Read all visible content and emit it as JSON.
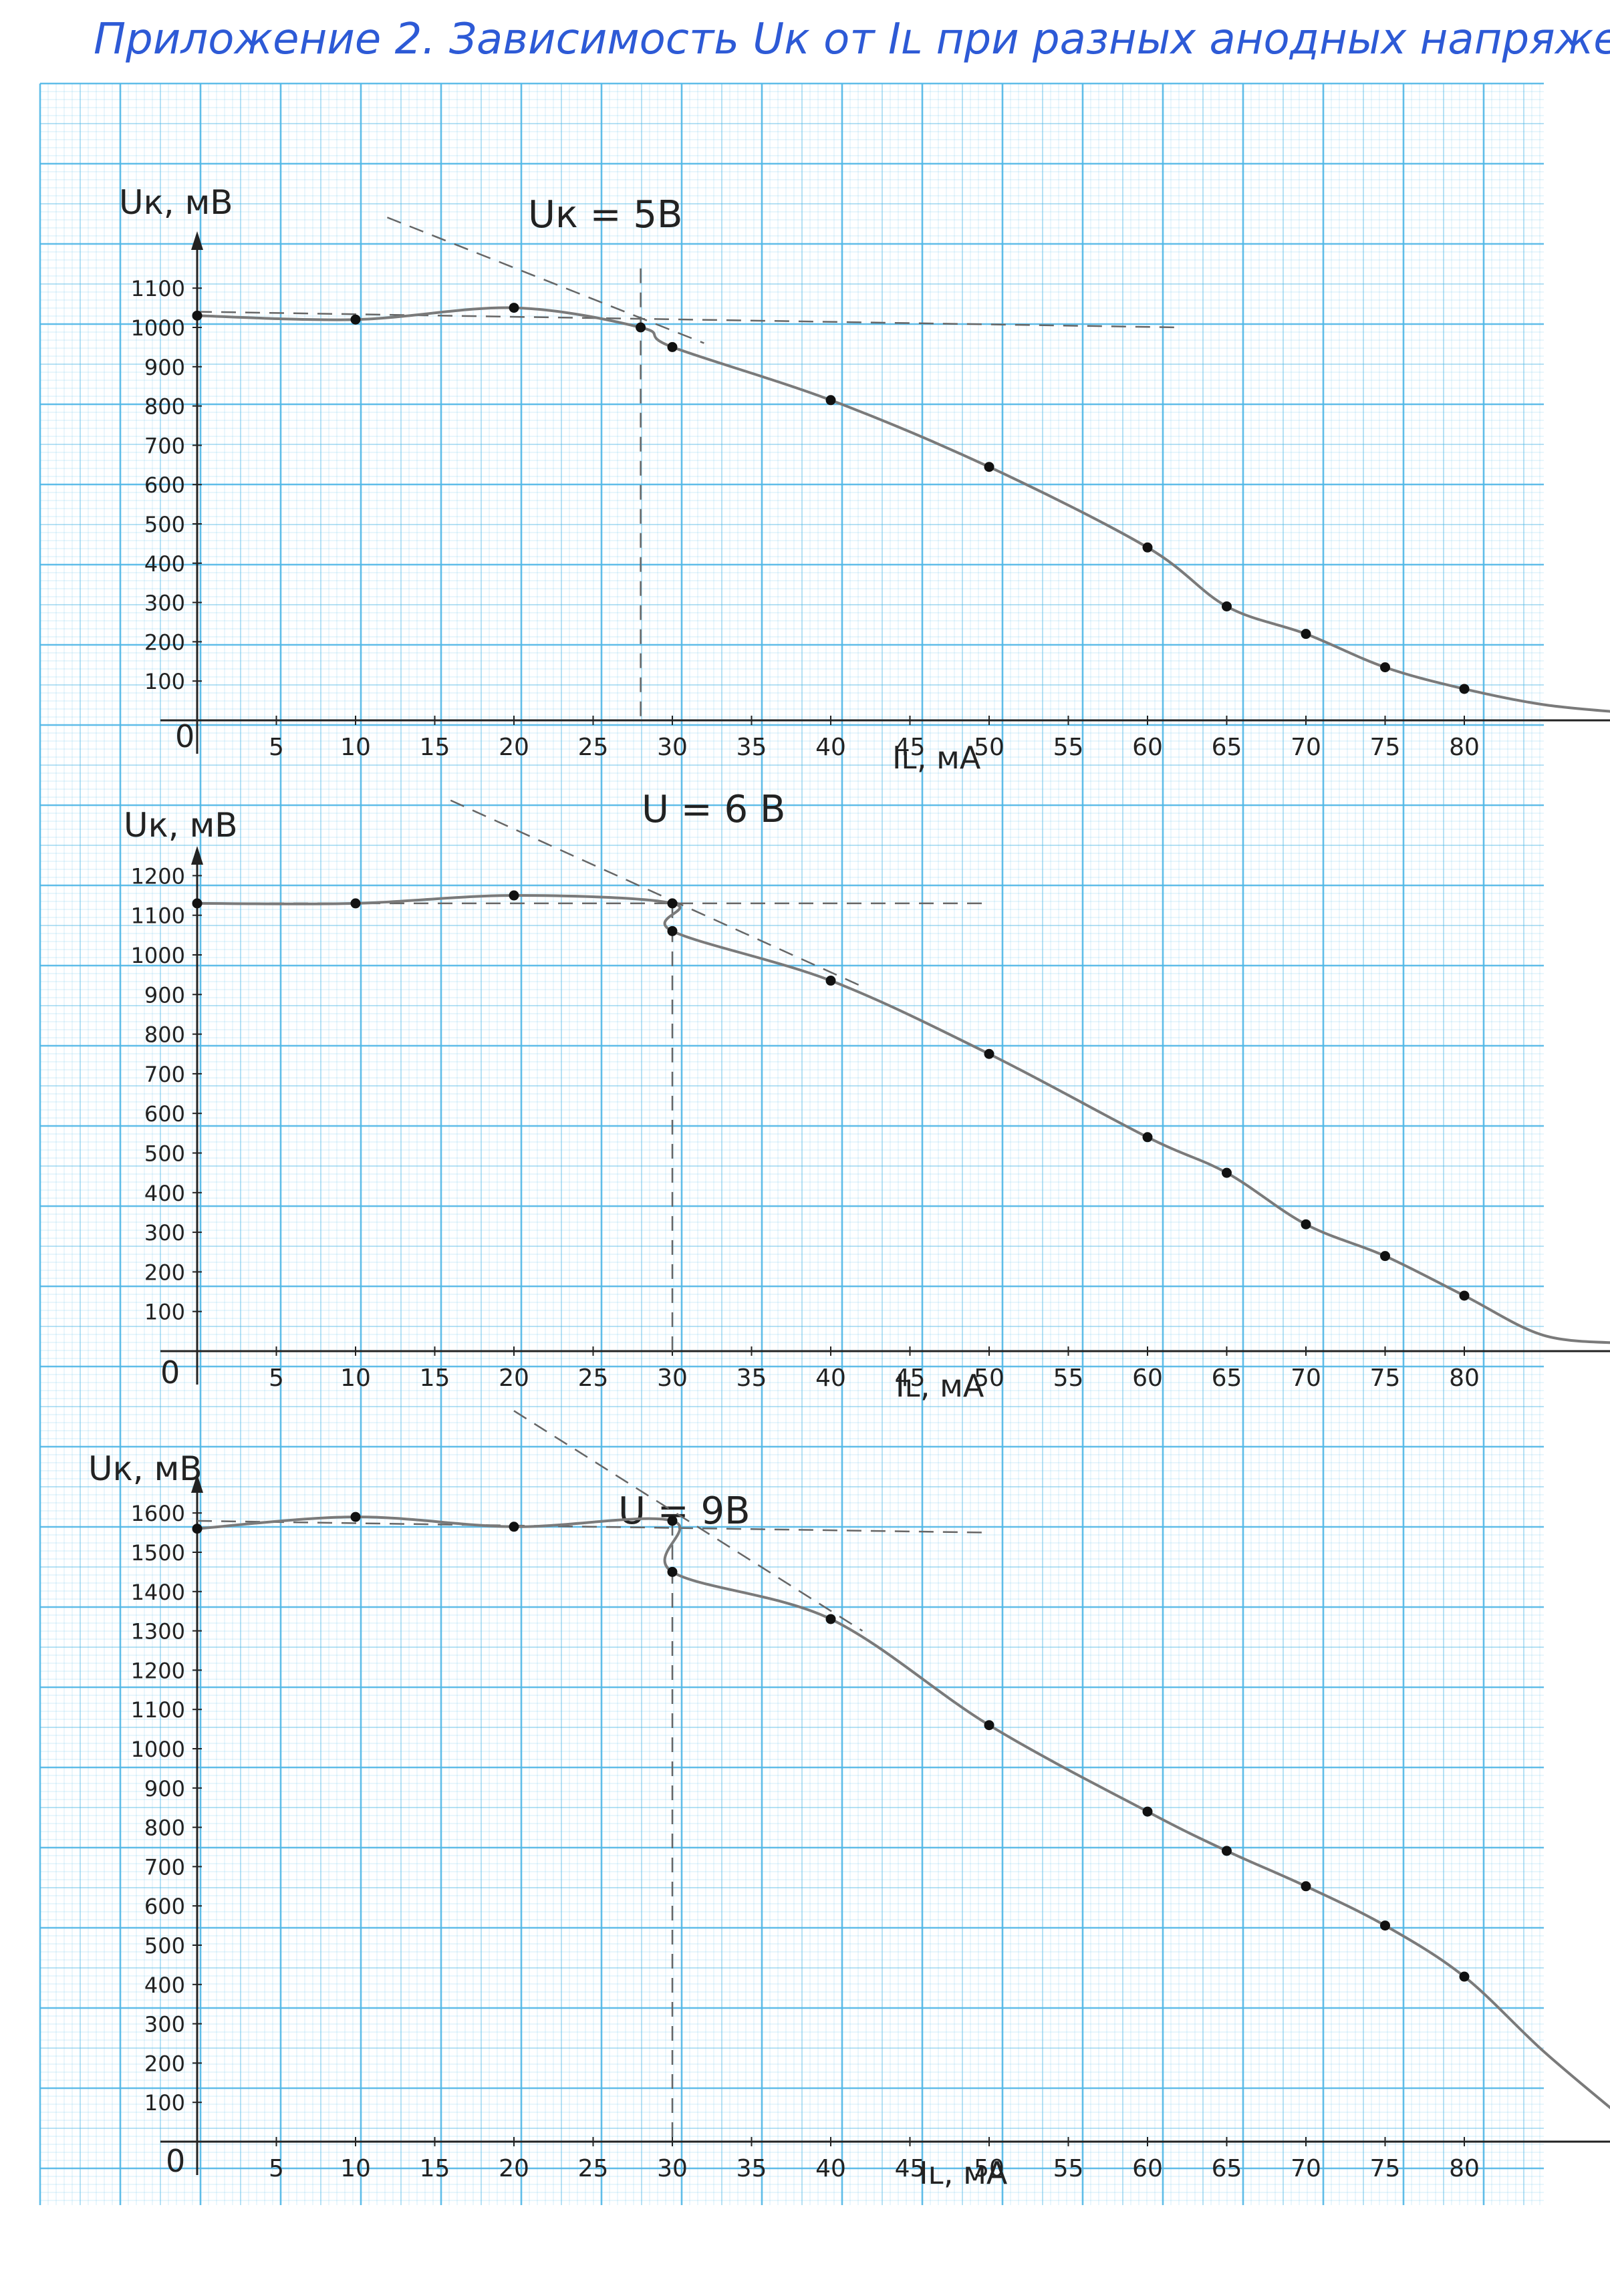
{
  "page": {
    "title": "Приложение 2. Зависимость Uк от Iʟ при разных анодных напряжениях.",
    "paper_color": "#ffffff",
    "grid_color": "#4fb6e6",
    "ink_color": "#222222",
    "title_color": "#2d5ad6",
    "curve_color": "#7a7a7a"
  },
  "chart_data": [
    {
      "type": "line",
      "title": "Uк = 5В",
      "xlabel": "Iʟ, мА",
      "ylabel": "Uк, мВ",
      "xlim": [
        0,
        90
      ],
      "ylim": [
        0,
        1200
      ],
      "x_ticks": [
        "5",
        "10",
        "15",
        "20",
        "25",
        "30",
        "35",
        "40",
        "45",
        "50",
        "55",
        "60",
        "65",
        "70",
        "75",
        "80"
      ],
      "y_ticks": [
        "100",
        "200",
        "300",
        "400",
        "500",
        "600",
        "700",
        "800",
        "900",
        "1000",
        "1100"
      ],
      "origin_label": "0",
      "points": [
        {
          "x": 0,
          "y": 1030
        },
        {
          "x": 10,
          "y": 1020
        },
        {
          "x": 20,
          "y": 1050
        },
        {
          "x": 28,
          "y": 1000
        },
        {
          "x": 30,
          "y": 950
        },
        {
          "x": 40,
          "y": 815
        },
        {
          "x": 50,
          "y": 645
        },
        {
          "x": 60,
          "y": 440
        },
        {
          "x": 65,
          "y": 290
        },
        {
          "x": 70,
          "y": 220
        },
        {
          "x": 75,
          "y": 135
        },
        {
          "x": 80,
          "y": 80
        }
      ],
      "curve_tail": [
        {
          "x": 85,
          "y": 40
        },
        {
          "x": 90,
          "y": 20
        }
      ],
      "flat_line": {
        "x": [
          0,
          62
        ],
        "y": [
          1040,
          1000
        ]
      },
      "tangent_line": {
        "x": [
          12,
          32
        ],
        "y": [
          1280,
          960
        ]
      },
      "drop_line": {
        "x": 28,
        "y_top": 1150
      }
    },
    {
      "type": "line",
      "title": "U = 6 В",
      "xlabel": "Iʟ, мА",
      "ylabel": "Uк, мВ",
      "xlim": [
        0,
        90
      ],
      "ylim": [
        0,
        1200
      ],
      "x_ticks": [
        "5",
        "10",
        "15",
        "20",
        "25",
        "30",
        "35",
        "40",
        "45",
        "50",
        "55",
        "60",
        "65",
        "70",
        "75",
        "80"
      ],
      "y_ticks": [
        "100",
        "200",
        "300",
        "400",
        "500",
        "600",
        "700",
        "800",
        "900",
        "1000",
        "1100",
        "1200"
      ],
      "origin_label": "0",
      "points": [
        {
          "x": 0,
          "y": 1130
        },
        {
          "x": 10,
          "y": 1130
        },
        {
          "x": 20,
          "y": 1150
        },
        {
          "x": 30,
          "y": 1130
        },
        {
          "x": 30,
          "y": 1060
        },
        {
          "x": 40,
          "y": 935
        },
        {
          "x": 50,
          "y": 750
        },
        {
          "x": 60,
          "y": 540
        },
        {
          "x": 65,
          "y": 450
        },
        {
          "x": 70,
          "y": 320
        },
        {
          "x": 75,
          "y": 240
        },
        {
          "x": 80,
          "y": 140
        }
      ],
      "curve_tail": [
        {
          "x": 85,
          "y": 40
        },
        {
          "x": 90,
          "y": 20
        }
      ],
      "flat_line": {
        "x": [
          0,
          50
        ],
        "y": [
          1130,
          1130
        ]
      },
      "tangent_line": {
        "x": [
          16,
          42
        ],
        "y": [
          1390,
          920
        ]
      },
      "drop_line": {
        "x": 30,
        "y_top": 1130
      }
    },
    {
      "type": "line",
      "title": "U = 9В",
      "xlabel": "Iʟ, мА",
      "ylabel": "Uк, мВ",
      "xlim": [
        0,
        90
      ],
      "ylim": [
        0,
        1650
      ],
      "x_ticks": [
        "5",
        "10",
        "15",
        "20",
        "25",
        "30",
        "35",
        "40",
        "45",
        "50",
        "55",
        "60",
        "65",
        "70",
        "75",
        "80"
      ],
      "y_ticks": [
        "100",
        "200",
        "300",
        "400",
        "500",
        "600",
        "700",
        "800",
        "900",
        "1000",
        "1100",
        "1200",
        "1300",
        "1400",
        "1500",
        "1600"
      ],
      "origin_label": "0",
      "points": [
        {
          "x": 0,
          "y": 1560
        },
        {
          "x": 10,
          "y": 1590
        },
        {
          "x": 20,
          "y": 1565
        },
        {
          "x": 30,
          "y": 1580
        },
        {
          "x": 30,
          "y": 1450
        },
        {
          "x": 40,
          "y": 1330
        },
        {
          "x": 50,
          "y": 1060
        },
        {
          "x": 60,
          "y": 840
        },
        {
          "x": 65,
          "y": 740
        },
        {
          "x": 70,
          "y": 650
        },
        {
          "x": 75,
          "y": 550
        },
        {
          "x": 80,
          "y": 420
        }
      ],
      "curve_tail": [
        {
          "x": 85,
          "y": 230
        },
        {
          "x": 90,
          "y": 60
        }
      ],
      "flat_line": {
        "x": [
          0,
          50
        ],
        "y": [
          1580,
          1550
        ]
      },
      "tangent_line": {
        "x": [
          20,
          42
        ],
        "y": [
          1860,
          1300
        ]
      },
      "drop_line": {
        "x": 30,
        "y_top": 1580
      }
    }
  ]
}
